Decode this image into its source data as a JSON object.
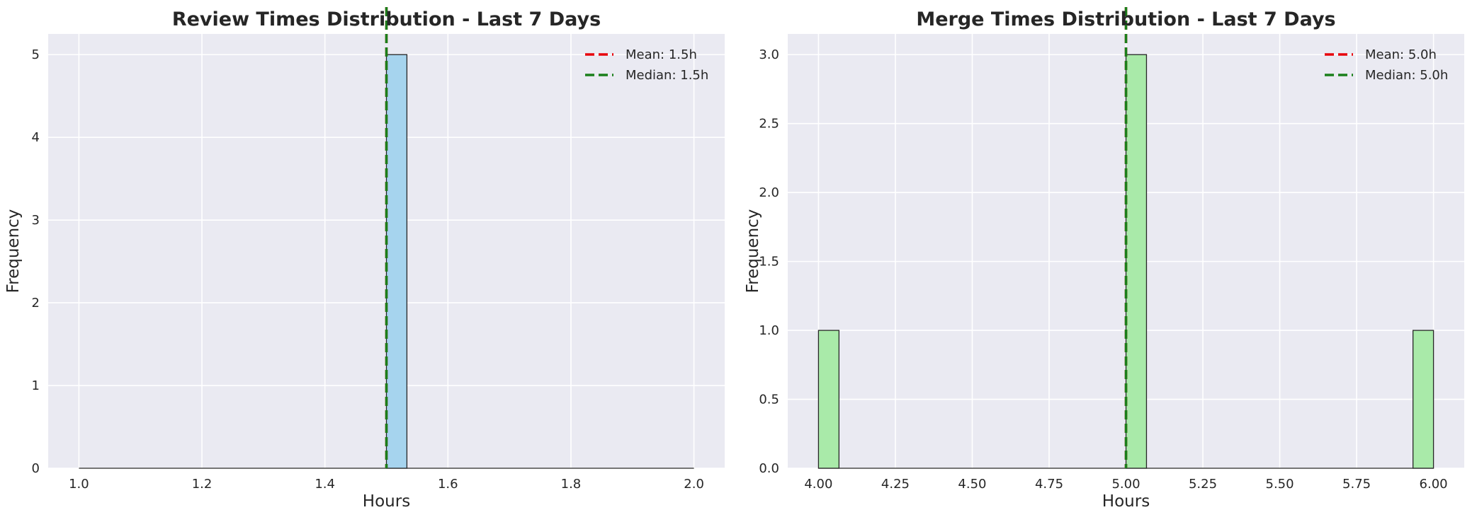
{
  "colors": {
    "axes_background": "#eaeaf2",
    "grid": "#ffffff",
    "mean_line": "#e8000b",
    "median_line": "#1a7f1a",
    "bar_edge": "#262626"
  },
  "chart_data": [
    {
      "type": "bar",
      "title": "Review Times Distribution - Last 7 Days",
      "xlabel": "Hours",
      "ylabel": "Frequency",
      "xlim": [
        0.95,
        2.05
      ],
      "ylim": [
        0,
        5.25
      ],
      "xticks": [
        1.0,
        1.2,
        1.4,
        1.6,
        1.8,
        2.0
      ],
      "xtick_labels": [
        "1.0",
        "1.2",
        "1.4",
        "1.6",
        "1.8",
        "2.0"
      ],
      "yticks": [
        0,
        1,
        2,
        3,
        4,
        5
      ],
      "ytick_labels": [
        "0",
        "1",
        "2",
        "3",
        "4",
        "5"
      ],
      "bar_color": "#a6d4ee",
      "bins": [
        {
          "x0": 1.5,
          "x1": 1.5333,
          "count": 5
        }
      ],
      "baseline": [
        1.0,
        2.0
      ],
      "mean": 1.5,
      "median": 1.5,
      "legend": [
        "Mean: 1.5h",
        "Median: 1.5h"
      ],
      "legend_position": "top-right",
      "grid": true
    },
    {
      "type": "bar",
      "title": "Merge Times Distribution - Last 7 Days",
      "xlabel": "Hours",
      "ylabel": "Frequency",
      "xlim": [
        3.9,
        6.1
      ],
      "ylim": [
        0,
        3.15
      ],
      "xticks": [
        4.0,
        4.25,
        4.5,
        4.75,
        5.0,
        5.25,
        5.5,
        5.75,
        6.0
      ],
      "xtick_labels": [
        "4.00",
        "4.25",
        "4.50",
        "4.75",
        "5.00",
        "5.25",
        "5.50",
        "5.75",
        "6.00"
      ],
      "yticks": [
        0,
        0.5,
        1.0,
        1.5,
        2.0,
        2.5,
        3.0
      ],
      "ytick_labels": [
        "0.0",
        "0.5",
        "1.0",
        "1.5",
        "2.0",
        "2.5",
        "3.0"
      ],
      "bar_color": "#a9eaa9",
      "bins": [
        {
          "x0": 4.0,
          "x1": 4.0667,
          "count": 1
        },
        {
          "x0": 5.0,
          "x1": 5.0667,
          "count": 3
        },
        {
          "x0": 5.9333,
          "x1": 6.0,
          "count": 1
        }
      ],
      "baseline": [
        4.0,
        6.0
      ],
      "mean": 5.0,
      "median": 5.0,
      "legend": [
        "Mean: 5.0h",
        "Median: 5.0h"
      ],
      "legend_position": "top-right",
      "grid": true
    }
  ]
}
